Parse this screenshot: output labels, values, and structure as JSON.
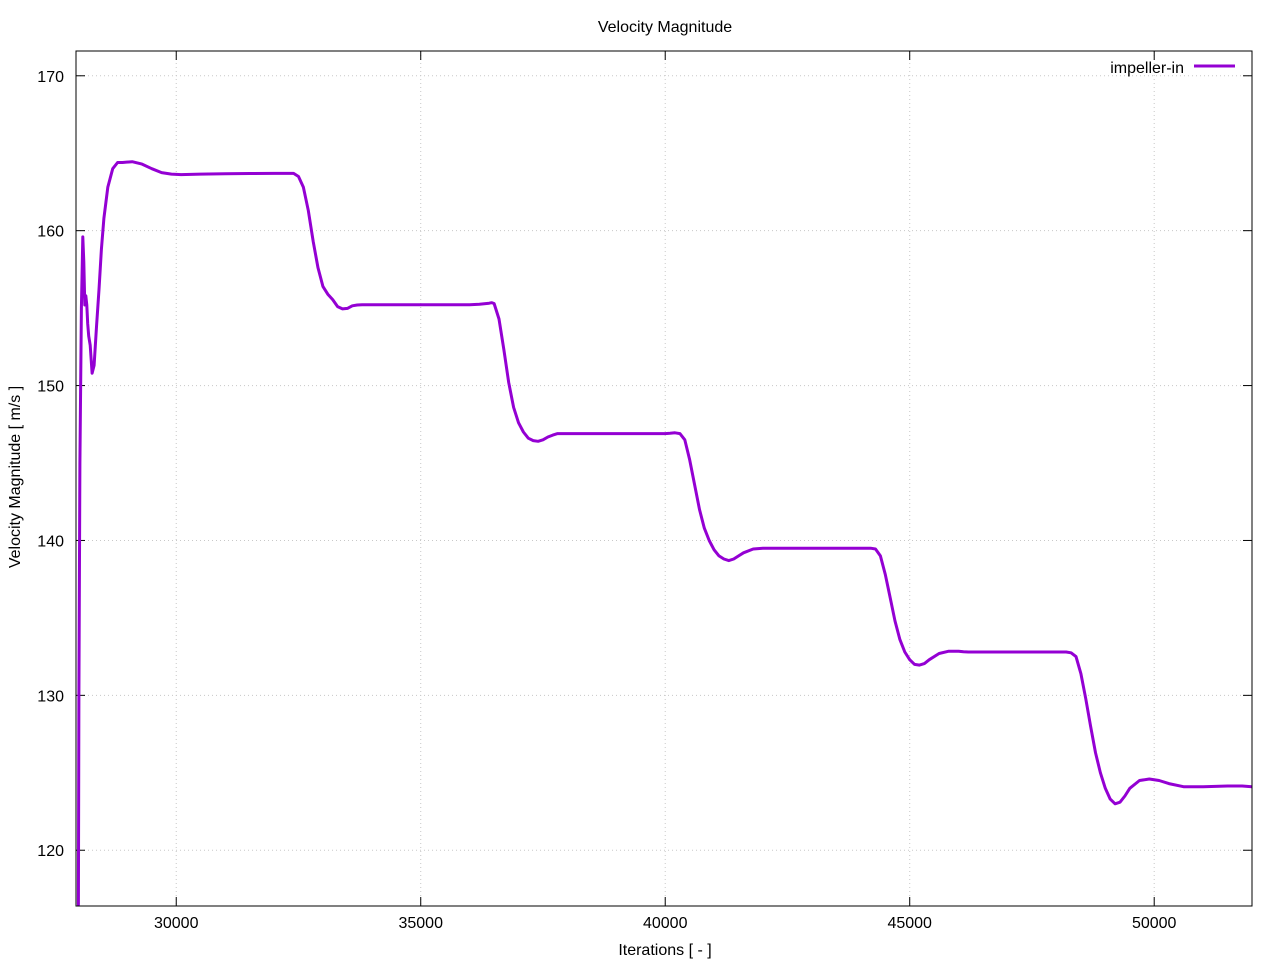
{
  "chart_data": {
    "type": "line",
    "title": "Velocity Magnitude",
    "xlabel": "Iterations [ - ]",
    "ylabel": "Velocity Magnitude [ m/s ]",
    "xlim": [
      27950,
      52000
    ],
    "ylim": [
      116.4,
      171.6
    ],
    "x_ticks": [
      30000,
      35000,
      40000,
      45000,
      50000
    ],
    "y_ticks": [
      120,
      130,
      140,
      150,
      160,
      170
    ],
    "grid": true,
    "legend_position": "top-right",
    "series": [
      {
        "name": "impeller-in",
        "color": "#9400d3",
        "x": [
          28000,
          28010,
          28030,
          28060,
          28090,
          28110,
          28130,
          28150,
          28170,
          28190,
          28210,
          28240,
          28280,
          28320,
          28370,
          28420,
          28470,
          28520,
          28600,
          28700,
          28800,
          28900,
          29100,
          29300,
          29500,
          29700,
          29900,
          30100,
          30500,
          31000,
          31500,
          32000,
          32400,
          32500,
          32600,
          32700,
          32800,
          32900,
          33000,
          33100,
          33200,
          33300,
          33400,
          33500,
          33600,
          33700,
          33800,
          33900,
          34500,
          35000,
          35500,
          36000,
          36200,
          36400,
          36450,
          36500,
          36600,
          36700,
          36800,
          36900,
          37000,
          37100,
          37200,
          37300,
          37400,
          37500,
          37600,
          37700,
          37800,
          38000,
          38500,
          39000,
          39500,
          40000,
          40100,
          40200,
          40300,
          40400,
          40500,
          40600,
          40700,
          40800,
          40900,
          41000,
          41100,
          41200,
          41300,
          41400,
          41500,
          41600,
          41800,
          42000,
          42500,
          43000,
          43500,
          44000,
          44200,
          44300,
          44400,
          44500,
          44600,
          44700,
          44800,
          44900,
          45000,
          45100,
          45200,
          45300,
          45400,
          45600,
          45800,
          46000,
          46100,
          46200,
          46500,
          47000,
          47500,
          48000,
          48200,
          48300,
          48400,
          48500,
          48600,
          48700,
          48800,
          48900,
          49000,
          49100,
          49200,
          49300,
          49400,
          49500,
          49700,
          49900,
          50100,
          50300,
          50600,
          51000,
          51500,
          51800,
          52000
        ],
        "y": [
          116.5,
          130.0,
          145.0,
          155.0,
          159.6,
          158.0,
          155.2,
          155.8,
          155.2,
          154.0,
          153.2,
          152.6,
          150.8,
          151.3,
          153.8,
          156.2,
          158.8,
          160.8,
          162.8,
          164.0,
          164.4,
          164.4,
          164.45,
          164.3,
          164.0,
          163.75,
          163.65,
          163.62,
          163.65,
          163.68,
          163.69,
          163.7,
          163.7,
          163.5,
          162.8,
          161.3,
          159.3,
          157.6,
          156.4,
          155.9,
          155.55,
          155.1,
          154.95,
          154.98,
          155.15,
          155.2,
          155.22,
          155.22,
          155.22,
          155.22,
          155.22,
          155.22,
          155.25,
          155.32,
          155.35,
          155.3,
          154.3,
          152.3,
          150.2,
          148.6,
          147.6,
          147.0,
          146.6,
          146.45,
          146.4,
          146.5,
          146.68,
          146.8,
          146.9,
          146.9,
          146.9,
          146.9,
          146.9,
          146.9,
          146.92,
          146.95,
          146.9,
          146.5,
          145.2,
          143.6,
          142.0,
          140.8,
          140.0,
          139.4,
          139.0,
          138.8,
          138.7,
          138.8,
          139.0,
          139.2,
          139.45,
          139.5,
          139.5,
          139.5,
          139.5,
          139.5,
          139.5,
          139.45,
          139.0,
          137.8,
          136.3,
          134.8,
          133.6,
          132.8,
          132.3,
          132.0,
          131.95,
          132.05,
          132.3,
          132.7,
          132.85,
          132.85,
          132.82,
          132.8,
          132.8,
          132.8,
          132.8,
          132.8,
          132.8,
          132.75,
          132.5,
          131.4,
          129.8,
          128.0,
          126.3,
          125.0,
          124.0,
          123.3,
          123.0,
          123.1,
          123.5,
          124.0,
          124.5,
          124.6,
          124.5,
          124.3,
          124.1,
          124.1,
          124.15,
          124.15,
          124.1
        ]
      }
    ]
  }
}
